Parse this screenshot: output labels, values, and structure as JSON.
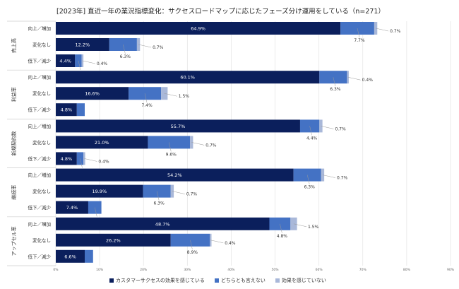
{
  "chart_data": {
    "type": "bar",
    "orientation": "horizontal",
    "stacked": true,
    "title": "[2023年] 直近一年の業況指標変化：サクセスロードマップに応じたフェーズ分け運用をしている（n=271）",
    "xlim": [
      0,
      90
    ],
    "x_ticks": [
      "0%",
      "10%",
      "20%",
      "30%",
      "40%",
      "50%",
      "60%",
      "70%",
      "80%",
      "90%"
    ],
    "grid": true,
    "legend_position": "bottom",
    "series_names": [
      "カスタマーサクセスの効果を感じている",
      "どちらとも言えない",
      "効果を感じていない"
    ],
    "colors": [
      "#0b1f5c",
      "#4472c4",
      "#a9b8d9"
    ],
    "groups": [
      {
        "name": "売上高",
        "rows": [
          {
            "label": "向上／増加",
            "values": [
              64.9,
              7.7,
              0.7
            ],
            "labels": [
              "64.9%",
              "7.7%",
              "0.7%"
            ]
          },
          {
            "label": "変化なし",
            "values": [
              12.2,
              6.3,
              0.7
            ],
            "labels": [
              "12.2%",
              "6.3%",
              "0.7%"
            ]
          },
          {
            "label": "低下／減少",
            "values": [
              4.4,
              1.5,
              0.4
            ],
            "labels": [
              "4.4%",
              "1.5%",
              "0.4%"
            ]
          }
        ]
      },
      {
        "name": "利益率",
        "rows": [
          {
            "label": "向上／増加",
            "values": [
              60.1,
              6.3,
              0.4
            ],
            "labels": [
              "60.1%",
              "6.3%",
              "0.4%"
            ]
          },
          {
            "label": "変化なし",
            "values": [
              16.6,
              7.4,
              1.5
            ],
            "labels": [
              "16.6%",
              "7.4%",
              "1.5%"
            ]
          },
          {
            "label": "低下／減少",
            "values": [
              4.8,
              1.8,
              0
            ],
            "labels": [
              "4.8%",
              "",
              ""
            ]
          }
        ]
      },
      {
        "name": "新規契約数",
        "rows": [
          {
            "label": "向上／増加",
            "values": [
              55.7,
              4.4,
              0.7
            ],
            "labels": [
              "55.7%",
              "4.4%",
              "0.7%"
            ]
          },
          {
            "label": "変化なし",
            "values": [
              21.0,
              9.6,
              0.7
            ],
            "labels": [
              "21.0%",
              "9.6%",
              "0.7%"
            ]
          },
          {
            "label": "低下／減少",
            "values": [
              4.8,
              1.5,
              0.4
            ],
            "labels": [
              "4.8%",
              "1.5%",
              "0.4%"
            ]
          }
        ]
      },
      {
        "name": "継続率",
        "rows": [
          {
            "label": "向上／増加",
            "values": [
              54.2,
              6.3,
              0.7
            ],
            "labels": [
              "54.2%",
              "6.3%",
              "0.7%"
            ]
          },
          {
            "label": "変化なし",
            "values": [
              19.9,
              6.3,
              0.7
            ],
            "labels": [
              "19.9%",
              "6.3%",
              "0.7%"
            ]
          },
          {
            "label": "低下／減少",
            "values": [
              7.4,
              3.0,
              0
            ],
            "labels": [
              "7.4%",
              "3.0%",
              ""
            ]
          }
        ]
      },
      {
        "name": "アップセル率",
        "rows": [
          {
            "label": "向上／増加",
            "values": [
              48.7,
              4.8,
              1.5
            ],
            "labels": [
              "48.7%",
              "4.8%",
              "1.5%"
            ]
          },
          {
            "label": "変化なし",
            "values": [
              26.2,
              8.9,
              0.4
            ],
            "labels": [
              "26.2%",
              "8.9%",
              "0.4%"
            ]
          },
          {
            "label": "低下／減少",
            "values": [
              6.6,
              1.9,
              0
            ],
            "labels": [
              "6.6%",
              "",
              ""
            ]
          }
        ]
      }
    ]
  }
}
